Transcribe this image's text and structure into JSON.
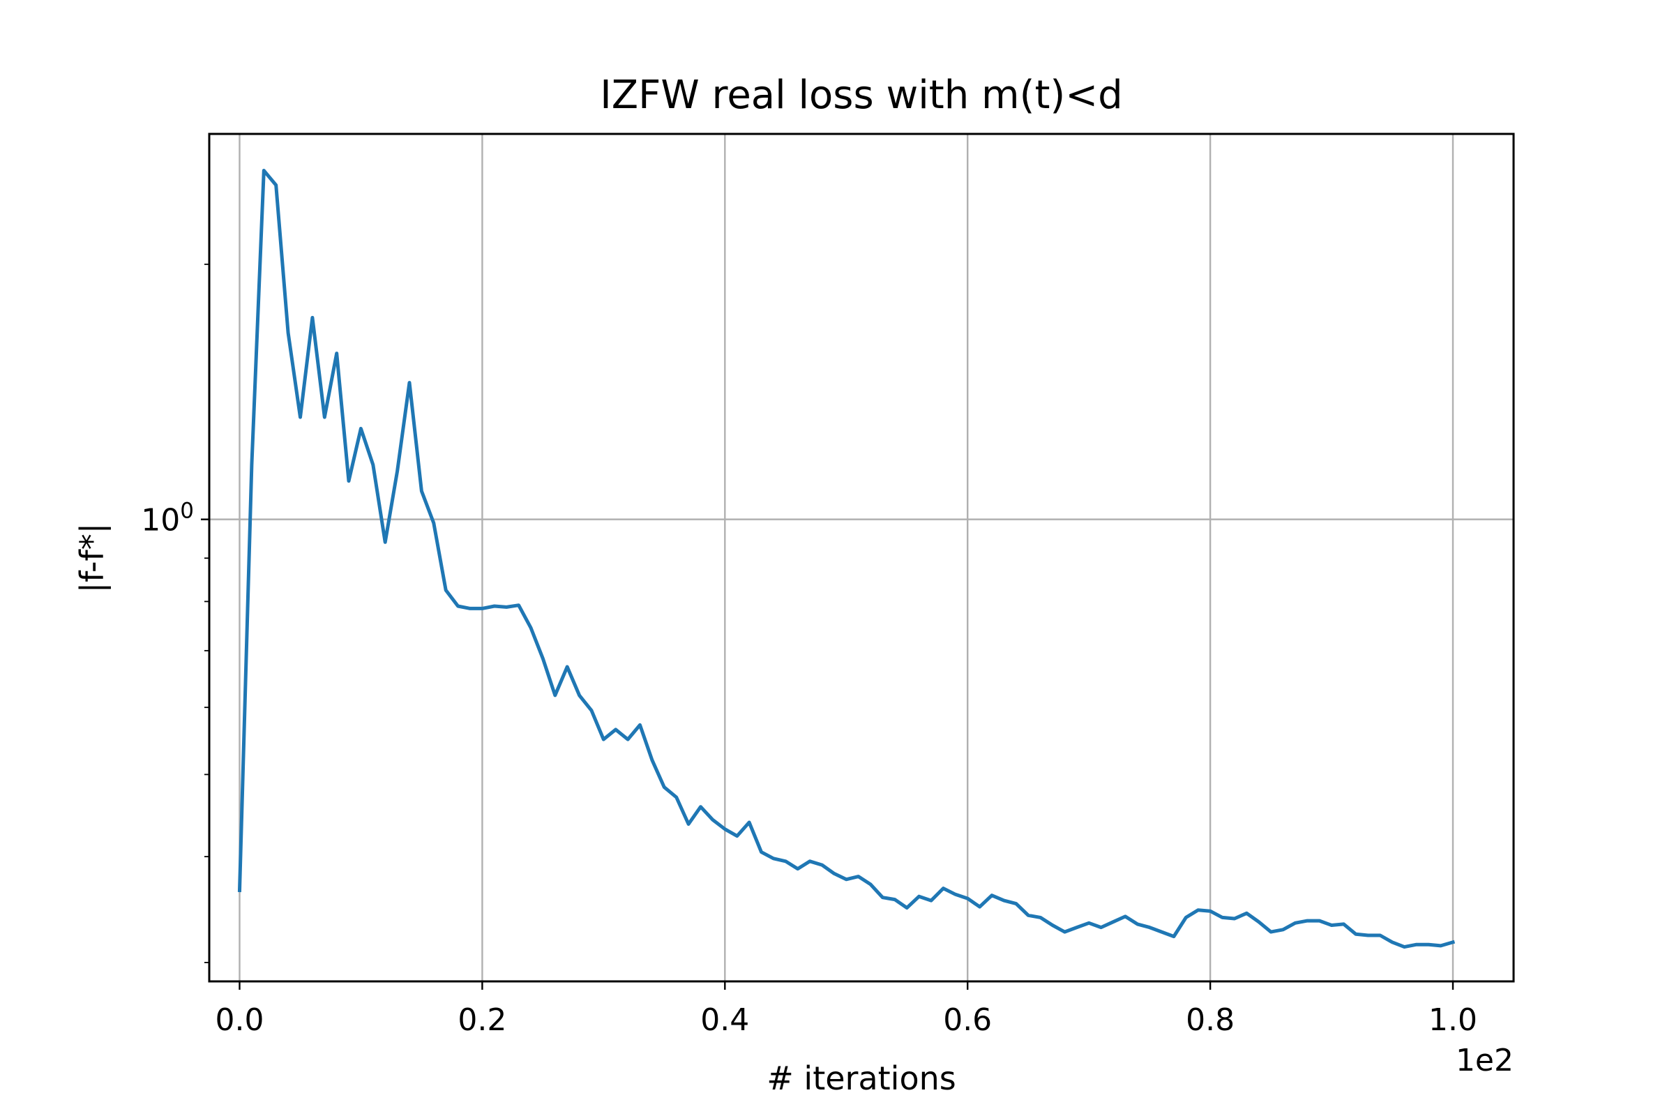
{
  "chart_data": {
    "type": "line",
    "title": "IZFW real loss with m(t)<d",
    "xlabel": "# iterations",
    "ylabel": "|f-f*|",
    "x_offset_text": "1e2",
    "xlim": [
      -0.025,
      1.05
    ],
    "ylim": [
      0.285,
      2.85
    ],
    "yscale": "log",
    "grid": true,
    "x_ticks": [
      0.0,
      0.2,
      0.4,
      0.6,
      0.8,
      1.0
    ],
    "x_tick_labels": [
      "0.0",
      "0.2",
      "0.4",
      "0.6",
      "0.8",
      "1.0"
    ],
    "y_major_ticks": [
      1.0
    ],
    "y_major_tick_label": {
      "base": "10",
      "exponent": "0"
    },
    "y_minor_ticks": [
      0.3,
      0.4,
      0.5,
      0.6,
      0.7,
      0.8,
      0.9,
      2.0
    ],
    "line_color": "#1f77b4",
    "series": [
      {
        "x": [
          0.0,
          0.01,
          0.02,
          0.03,
          0.04,
          0.05,
          0.06,
          0.07,
          0.08,
          0.09,
          0.1,
          0.11,
          0.12,
          0.13,
          0.14,
          0.15,
          0.16,
          0.17,
          0.18,
          0.19,
          0.2,
          0.21,
          0.22,
          0.23,
          0.24,
          0.25,
          0.26,
          0.27,
          0.28,
          0.29,
          0.3,
          0.31,
          0.32,
          0.33,
          0.34,
          0.35,
          0.36,
          0.37,
          0.38,
          0.39,
          0.4,
          0.41,
          0.42,
          0.43,
          0.44,
          0.45,
          0.46,
          0.47,
          0.48,
          0.49,
          0.5,
          0.51,
          0.52,
          0.53,
          0.54,
          0.55,
          0.56,
          0.57,
          0.58,
          0.59,
          0.6,
          0.61,
          0.62,
          0.63,
          0.64,
          0.65,
          0.66,
          0.67,
          0.68,
          0.69,
          0.7,
          0.71,
          0.72,
          0.73,
          0.74,
          0.75,
          0.76,
          0.77,
          0.78,
          0.79,
          0.8,
          0.81,
          0.82,
          0.83,
          0.84,
          0.85,
          0.86,
          0.87,
          0.88,
          0.89,
          0.9,
          0.91,
          0.92,
          0.93,
          0.94,
          0.95,
          0.96,
          0.97,
          0.98,
          0.99,
          1.0
        ],
        "y": [
          0.365,
          1.16,
          2.58,
          2.48,
          1.66,
          1.32,
          1.73,
          1.32,
          1.57,
          1.11,
          1.28,
          1.16,
          0.94,
          1.14,
          1.45,
          1.08,
          0.99,
          0.825,
          0.79,
          0.785,
          0.785,
          0.79,
          0.788,
          0.792,
          0.745,
          0.685,
          0.62,
          0.67,
          0.62,
          0.595,
          0.55,
          0.565,
          0.55,
          0.572,
          0.52,
          0.483,
          0.47,
          0.437,
          0.458,
          0.442,
          0.431,
          0.423,
          0.439,
          0.405,
          0.398,
          0.395,
          0.387,
          0.395,
          0.391,
          0.382,
          0.376,
          0.379,
          0.371,
          0.358,
          0.356,
          0.348,
          0.359,
          0.355,
          0.367,
          0.361,
          0.357,
          0.349,
          0.36,
          0.355,
          0.352,
          0.341,
          0.339,
          0.332,
          0.326,
          0.33,
          0.334,
          0.33,
          0.335,
          0.34,
          0.333,
          0.33,
          0.326,
          0.322,
          0.339,
          0.346,
          0.345,
          0.339,
          0.338,
          0.343,
          0.335,
          0.326,
          0.328,
          0.334,
          0.336,
          0.336,
          0.332,
          0.333,
          0.324,
          0.323,
          0.323,
          0.317,
          0.313,
          0.315,
          0.315,
          0.314,
          0.317
        ]
      }
    ]
  }
}
